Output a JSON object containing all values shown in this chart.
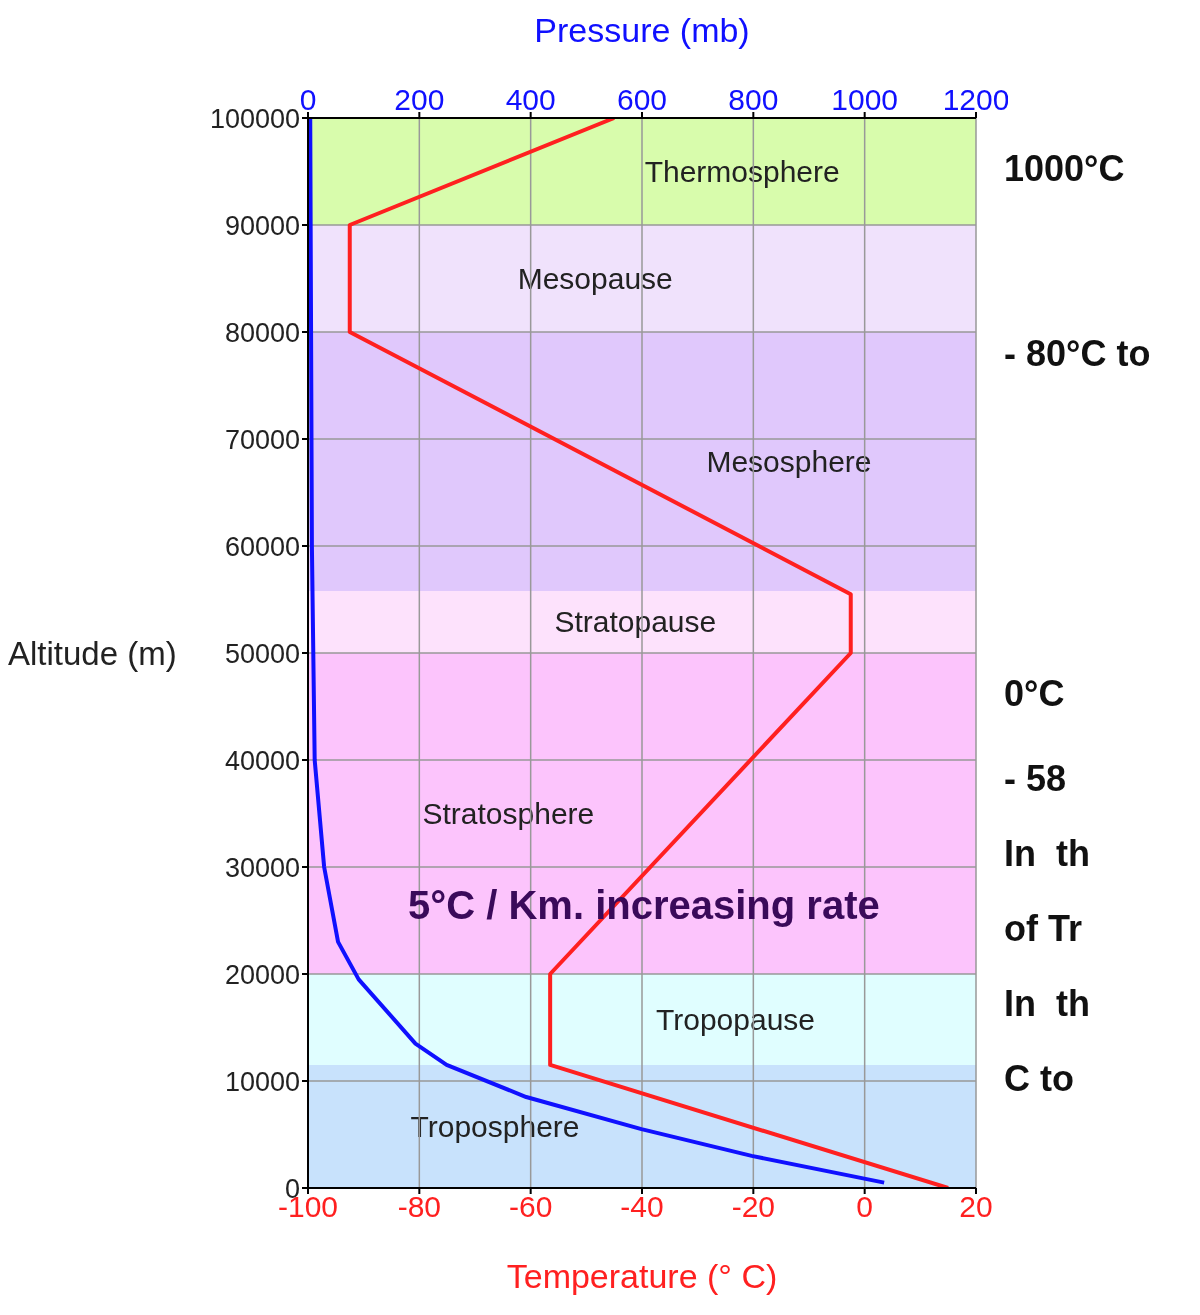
{
  "chart_data": {
    "type": "line",
    "xlabel": "Temperature (° C)",
    "x2label": "Pressure (mb)",
    "ylabel": "Altitude (m)",
    "xlim": [
      -100,
      20
    ],
    "xticks": [
      -100,
      -80,
      -60,
      -40,
      -20,
      0,
      20
    ],
    "x2lim": [
      0,
      1200
    ],
    "x2ticks": [
      0,
      200,
      400,
      600,
      800,
      1000,
      1200
    ],
    "ylim": [
      0,
      100000
    ],
    "yticks": [
      0,
      10000,
      20000,
      30000,
      40000,
      50000,
      60000,
      70000,
      80000,
      90000,
      100000
    ],
    "grid": true,
    "series": [
      {
        "color": "#ff2020",
        "x": [
          15,
          -56.5,
          -56.5,
          -2.5,
          -2.5,
          -92.5,
          -92.5,
          -45
        ],
        "values": [
          0,
          11500,
          20000,
          50000,
          55500,
          80000,
          90000,
          100000
        ]
      },
      {
        "color": "#1010ff",
        "axis": "x2",
        "x": [
          1035,
          797,
          599,
          392,
          249,
          193,
          91,
          54,
          29,
          12,
          7,
          4
        ],
        "values": [
          500,
          3000,
          5500,
          8500,
          11500,
          13500,
          19500,
          23000,
          30000,
          40000,
          60000,
          100000
        ]
      }
    ],
    "bands": [
      {
        "axis": "y",
        "from": 0,
        "to": 11500,
        "label": "Troposphere",
        "color": "#c8e2fc"
      },
      {
        "axis": "y",
        "from": 11500,
        "to": 20000,
        "label": "Tropopause",
        "color": "#e0feff"
      },
      {
        "axis": "y",
        "from": 20000,
        "to": 50000,
        "label": "Stratosphere",
        "color": "#fcc4fc"
      },
      {
        "axis": "y",
        "from": 50000,
        "to": 55800,
        "label": "Stratopause",
        "color": "#fde2fc"
      },
      {
        "axis": "y",
        "from": 55800,
        "to": 80000,
        "label": "Mesosphere",
        "color": "#e0c8fc"
      },
      {
        "axis": "y",
        "from": 80000,
        "to": 90000,
        "label": "Mesopause",
        "color": "#f0e2fc"
      },
      {
        "axis": "y",
        "from": 90000,
        "to": 100000,
        "label": "Thermosphere",
        "color": "#d8fcac"
      }
    ],
    "annotations": [
      "5°C / Km. increasing rate",
      "1000°C",
      "- 80°C to",
      "0°C",
      "- 58",
      "In  th",
      "of Tr",
      "In  th",
      "C to"
    ]
  }
}
